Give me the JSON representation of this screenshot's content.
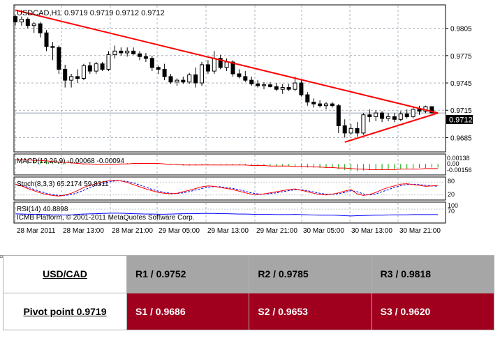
{
  "chart_header": {
    "symbol": "USDCAD,H1",
    "ohlc": "0.9719 0.9719 0.9712 0.9712"
  },
  "colors": {
    "trend_line": "#ff0000",
    "macd_hist": "#00a000",
    "macd_signal": "#ff0000",
    "stoch_main": "#ff0000",
    "stoch_signal": "#0000ff",
    "rsi": "#0000ff",
    "resistance_bg": "#a6a6a6",
    "support_bg": "#a0001e"
  },
  "chart_data": {
    "type": "candlestick",
    "price_axis": {
      "ylim": [
        0.967,
        0.983
      ],
      "ticks": [
        "0.9805",
        "0.9775",
        "0.9745",
        "0.9715",
        "0.9685"
      ],
      "current_price": "0.9712"
    },
    "time_axis": {
      "labels": [
        "28 Mar 2011",
        "28 Mar 13:00",
        "28 Mar 21:00",
        "29 Mar 05:00",
        "29 Mar 13:00",
        "29 Mar 21:00",
        "30 Mar 05:00",
        "30 Mar 13:00",
        "30 Mar 21:00"
      ]
    },
    "candles": [
      [
        0.9818,
        0.982,
        0.9808,
        0.9812
      ],
      [
        0.9812,
        0.9818,
        0.9808,
        0.9815
      ],
      [
        0.9815,
        0.9817,
        0.9805,
        0.9808
      ],
      [
        0.9808,
        0.9812,
        0.98,
        0.981
      ],
      [
        0.981,
        0.9812,
        0.9795,
        0.98
      ],
      [
        0.98,
        0.9803,
        0.978,
        0.9785
      ],
      [
        0.9785,
        0.979,
        0.977,
        0.9784
      ],
      [
        0.9784,
        0.9786,
        0.9755,
        0.976
      ],
      [
        0.976,
        0.9765,
        0.974,
        0.9748
      ],
      [
        0.9748,
        0.9755,
        0.974,
        0.9752
      ],
      [
        0.9752,
        0.976,
        0.9745,
        0.975
      ],
      [
        0.975,
        0.9766,
        0.9748,
        0.9764
      ],
      [
        0.9764,
        0.9768,
        0.9755,
        0.9758
      ],
      [
        0.9758,
        0.9768,
        0.9755,
        0.9766
      ],
      [
        0.9766,
        0.9768,
        0.9758,
        0.976
      ],
      [
        0.976,
        0.978,
        0.9758,
        0.9776
      ],
      [
        0.9776,
        0.9786,
        0.9772,
        0.978
      ],
      [
        0.978,
        0.9784,
        0.9775,
        0.9778
      ],
      [
        0.9778,
        0.9784,
        0.9774,
        0.978
      ],
      [
        0.978,
        0.9784,
        0.9776,
        0.9777
      ],
      [
        0.9777,
        0.978,
        0.977,
        0.9774
      ],
      [
        0.9774,
        0.9778,
        0.9768,
        0.9772
      ],
      [
        0.9772,
        0.9775,
        0.9758,
        0.9762
      ],
      [
        0.9762,
        0.9764,
        0.9755,
        0.976
      ],
      [
        0.976,
        0.9766,
        0.9748,
        0.9752
      ],
      [
        0.9752,
        0.9755,
        0.9744,
        0.9746
      ],
      [
        0.9746,
        0.975,
        0.9742,
        0.9748
      ],
      [
        0.9748,
        0.9752,
        0.9744,
        0.9746
      ],
      [
        0.9746,
        0.9756,
        0.9744,
        0.9754
      ],
      [
        0.9754,
        0.9762,
        0.974,
        0.9745
      ],
      [
        0.9745,
        0.9768,
        0.9742,
        0.9765
      ],
      [
        0.9765,
        0.977,
        0.9755,
        0.9758
      ],
      [
        0.9758,
        0.978,
        0.9755,
        0.9772
      ],
      [
        0.9772,
        0.9776,
        0.976,
        0.9762
      ],
      [
        0.9762,
        0.9772,
        0.9758,
        0.9768
      ],
      [
        0.9768,
        0.977,
        0.9752,
        0.9755
      ],
      [
        0.9755,
        0.976,
        0.975,
        0.9752
      ],
      [
        0.9752,
        0.9758,
        0.9746,
        0.9748
      ],
      [
        0.9748,
        0.9752,
        0.9742,
        0.9744
      ],
      [
        0.9744,
        0.9748,
        0.974,
        0.9742
      ],
      [
        0.9742,
        0.9746,
        0.9738,
        0.9743
      ],
      [
        0.9743,
        0.9746,
        0.974,
        0.9741
      ],
      [
        0.9741,
        0.9745,
        0.9736,
        0.9738
      ],
      [
        0.9738,
        0.9744,
        0.9733,
        0.974
      ],
      [
        0.974,
        0.9744,
        0.9736,
        0.9738
      ],
      [
        0.9738,
        0.9752,
        0.9736,
        0.9745
      ],
      [
        0.9745,
        0.9748,
        0.973,
        0.9732
      ],
      [
        0.9732,
        0.9735,
        0.972,
        0.9724
      ],
      [
        0.9724,
        0.9728,
        0.9718,
        0.9722
      ],
      [
        0.9722,
        0.9726,
        0.9718,
        0.972
      ],
      [
        0.972,
        0.9724,
        0.9716,
        0.9722
      ],
      [
        0.9722,
        0.9724,
        0.9718,
        0.972
      ],
      [
        0.972,
        0.9722,
        0.969,
        0.9698
      ],
      [
        0.9698,
        0.9705,
        0.9685,
        0.969
      ],
      [
        0.969,
        0.97,
        0.9688,
        0.9695
      ],
      [
        0.9695,
        0.9702,
        0.9686,
        0.969
      ],
      [
        0.969,
        0.9712,
        0.9688,
        0.971
      ],
      [
        0.971,
        0.9716,
        0.9702,
        0.9708
      ],
      [
        0.9708,
        0.9715,
        0.9703,
        0.9712
      ],
      [
        0.9712,
        0.9714,
        0.9702,
        0.9706
      ],
      [
        0.9706,
        0.9712,
        0.9703,
        0.9708
      ],
      [
        0.9708,
        0.9712,
        0.9702,
        0.9705
      ],
      [
        0.9705,
        0.9714,
        0.9703,
        0.9711
      ],
      [
        0.9711,
        0.9716,
        0.9706,
        0.9708
      ],
      [
        0.9708,
        0.9718,
        0.9706,
        0.9716
      ],
      [
        0.9716,
        0.972,
        0.971,
        0.9714
      ],
      [
        0.9714,
        0.972,
        0.9712,
        0.9719
      ],
      [
        0.9719,
        0.9719,
        0.9712,
        0.9712
      ]
    ],
    "trend_lines": [
      {
        "from": [
          0,
          0.9825
        ],
        "to": [
          68,
          0.9712
        ]
      },
      {
        "from": [
          53,
          0.968
        ],
        "to": [
          68,
          0.9712
        ]
      }
    ],
    "macd": {
      "label": "MACD(12,26,9) -0.00068 -0.00094",
      "ticks": [
        "0.00138",
        "0.00",
        "-0.00156"
      ],
      "ylim": [
        -0.002,
        0.0018
      ],
      "histogram": [
        0.001,
        0.0009,
        0.0008,
        0.0008,
        0.0007,
        0.0006,
        0.0004,
        0.0003,
        0.0002,
        0.0001,
        0.0,
        -0.0001,
        -0.0001,
        -0.0002,
        -0.0001,
        -0.0001,
        0.0,
        0.0001,
        0.0002,
        0.0002,
        0.0002,
        0.0002,
        0.0001,
        0.0,
        -0.0001,
        -0.0002,
        -0.0002,
        -0.0003,
        -0.0003,
        -0.0003,
        -0.0002,
        -0.0002,
        -0.0001,
        -0.0001,
        -0.0001,
        -0.0002,
        -0.0002,
        -0.0003,
        -0.0003,
        -0.0004,
        -0.0004,
        -0.0004,
        -0.0005,
        -0.0005,
        -0.0005,
        -0.0005,
        -0.0006,
        -0.0007,
        -0.0007,
        -0.0008,
        -0.0008,
        -0.0008,
        -0.001,
        -0.0012,
        -0.0013,
        -0.0014,
        -0.0013,
        -0.0012,
        -0.0012,
        -0.0011,
        -0.0011,
        -0.001,
        -0.001,
        -0.0009,
        -0.0009,
        -0.0008,
        -0.0008,
        -0.0007,
        -0.0007
      ],
      "signal": [
        0.0008,
        0.0008,
        0.0008,
        0.0007,
        0.0007,
        0.0006,
        0.0005,
        0.0004,
        0.0003,
        0.0002,
        0.0001,
        0.0,
        0.0,
        -0.0001,
        -0.0001,
        -0.0001,
        -0.0001,
        0.0,
        0.0,
        0.0001,
        0.0001,
        0.0001,
        0.0001,
        0.0001,
        0.0,
        -0.0001,
        -0.0001,
        -0.0002,
        -0.0002,
        -0.0002,
        -0.0002,
        -0.0002,
        -0.0002,
        -0.0002,
        -0.0002,
        -0.0002,
        -0.0002,
        -0.0002,
        -0.0003,
        -0.0003,
        -0.0003,
        -0.0004,
        -0.0004,
        -0.0004,
        -0.0004,
        -0.0005,
        -0.0005,
        -0.0005,
        -0.0006,
        -0.0006,
        -0.0007,
        -0.0007,
        -0.0008,
        -0.0008,
        -0.0009,
        -0.001,
        -0.001,
        -0.0011,
        -0.0011,
        -0.0011,
        -0.0011,
        -0.0011,
        -0.001,
        -0.001,
        -0.001,
        -0.001,
        -0.0009,
        -0.0009,
        -0.0009
      ]
    },
    "stochastic": {
      "label": "Stoch(8,3,3) 65.2174 59.8311",
      "ticks": [
        "80",
        "20"
      ],
      "ylim": [
        0,
        100
      ],
      "main": [
        70,
        62,
        50,
        40,
        30,
        22,
        18,
        15,
        20,
        28,
        40,
        55,
        65,
        72,
        80,
        86,
        88,
        85,
        78,
        68,
        58,
        48,
        40,
        32,
        28,
        26,
        28,
        35,
        42,
        50,
        58,
        62,
        60,
        55,
        50,
        45,
        38,
        30,
        24,
        22,
        25,
        30,
        35,
        40,
        45,
        48,
        42,
        35,
        28,
        22,
        20,
        24,
        30,
        38,
        45,
        25,
        18,
        22,
        32,
        45,
        55,
        62,
        70,
        72,
        68,
        65,
        60,
        62,
        65
      ],
      "signal": [
        68,
        64,
        56,
        46,
        36,
        28,
        22,
        18,
        18,
        22,
        30,
        42,
        55,
        65,
        72,
        80,
        85,
        86,
        82,
        76,
        66,
        56,
        46,
        38,
        32,
        28,
        27,
        30,
        36,
        43,
        50,
        56,
        59,
        58,
        54,
        50,
        44,
        37,
        30,
        25,
        24,
        26,
        30,
        35,
        40,
        44,
        44,
        40,
        34,
        28,
        24,
        23,
        26,
        32,
        40,
        35,
        25,
        20,
        25,
        35,
        45,
        55,
        63,
        68,
        70,
        68,
        65,
        62,
        60
      ]
    },
    "rsi": {
      "label": "RSI(14) 40.8898",
      "ticks": [
        "100",
        "70"
      ],
      "ylim": [
        0,
        100
      ],
      "values": [
        45,
        44,
        43,
        43,
        42,
        41,
        40,
        40,
        39,
        40,
        42,
        44,
        45,
        46,
        47,
        48,
        49,
        48,
        47,
        46,
        45,
        44,
        44,
        43,
        43,
        44,
        45,
        46,
        46,
        46,
        47,
        47,
        47,
        46,
        46,
        45,
        44,
        44,
        43,
        42,
        42,
        42,
        41,
        41,
        41,
        42,
        41,
        40,
        39,
        38,
        38,
        38,
        37,
        35,
        34,
        35,
        36,
        37,
        38,
        38,
        39,
        40,
        40,
        40,
        41,
        41,
        41,
        41,
        41
      ]
    }
  },
  "watermark": "ICMB Platform, © 2001-2011 MetaQuotes Software Corp.",
  "pivot_table": {
    "pair": "USD/CAD",
    "pivot": "Pivot point 0.9719",
    "resistance": [
      "R1 / 0.9752",
      "R2 / 0.9785",
      "R3 / 0.9818"
    ],
    "support": [
      "S1 / 0.9686",
      "S2 / 0.9653",
      "S3 / 0.9620"
    ]
  }
}
